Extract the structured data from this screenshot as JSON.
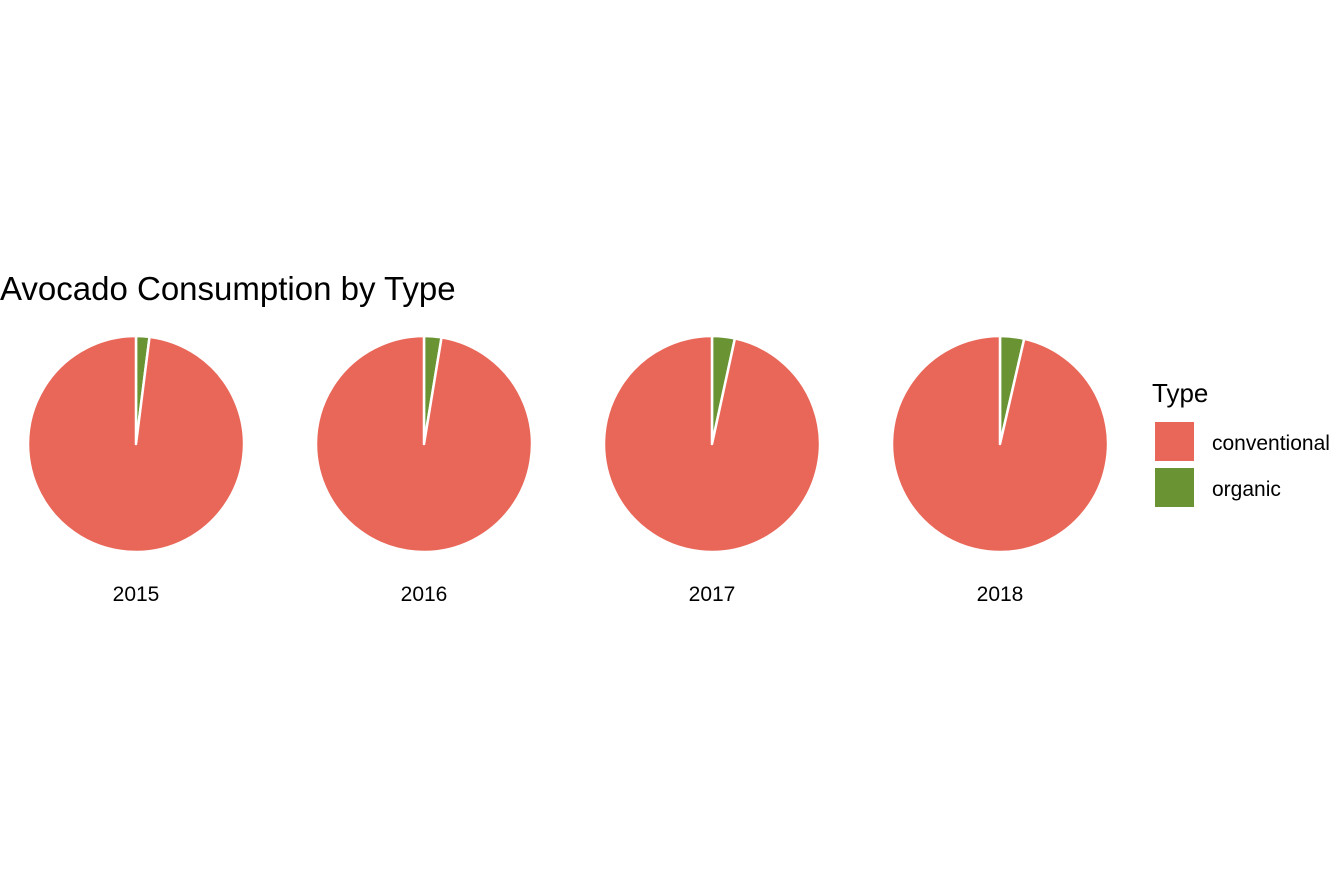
{
  "chart_data": {
    "type": "pie",
    "title": "Avocado Consumption by Type",
    "facet_labels": [
      "2015",
      "2016",
      "2017",
      "2018"
    ],
    "categories": [
      "conventional",
      "organic"
    ],
    "facets": [
      {
        "label": "2015",
        "values": {
          "conventional": 98.0,
          "organic": 2.0
        }
      },
      {
        "label": "2016",
        "values": {
          "conventional": 97.4,
          "organic": 2.6
        }
      },
      {
        "label": "2017",
        "values": {
          "conventional": 96.6,
          "organic": 3.4
        }
      },
      {
        "label": "2018",
        "values": {
          "conventional": 96.4,
          "organic": 3.6
        }
      }
    ],
    "legend": {
      "title": "Type",
      "position": "right",
      "entries": [
        "conventional",
        "organic"
      ]
    },
    "colors": {
      "conventional": "#E96758",
      "organic": "#6A9433"
    },
    "slice_separator_color": "#FFFFFF"
  }
}
